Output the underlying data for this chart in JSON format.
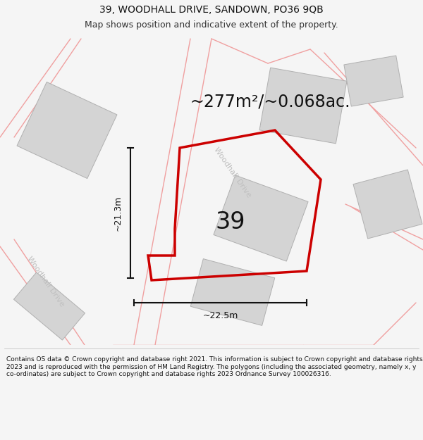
{
  "title": "39, WOODHALL DRIVE, SANDOWN, PO36 9QB",
  "subtitle": "Map shows position and indicative extent of the property.",
  "footer": "Contains OS data © Crown copyright and database right 2021. This information is subject to Crown copyright and database rights 2023 and is reproduced with the permission of HM Land Registry. The polygons (including the associated geometry, namely x, y co-ordinates) are subject to Crown copyright and database rights 2023 Ordnance Survey 100026316.",
  "area_label": "~277m²/~0.068ac.",
  "number_label": "39",
  "dim_h": "~21.3m",
  "dim_w": "~22.5m",
  "road_label_1": "Woodhall Drive",
  "road_label_2": "Woodhall Drive",
  "bg_color": "#f5f5f5",
  "map_bg": "#ffffff",
  "plot_color": "#cc0000",
  "building_color": "#d4d4d4",
  "road_line_color": "#f0a0a0",
  "dim_line_color": "#111111",
  "title_fontsize": 10,
  "subtitle_fontsize": 9,
  "footer_fontsize": 6.5,
  "area_label_fontsize": 17,
  "number_fontsize": 24,
  "road_label_fontsize": 8,
  "dim_label_fontsize": 9
}
